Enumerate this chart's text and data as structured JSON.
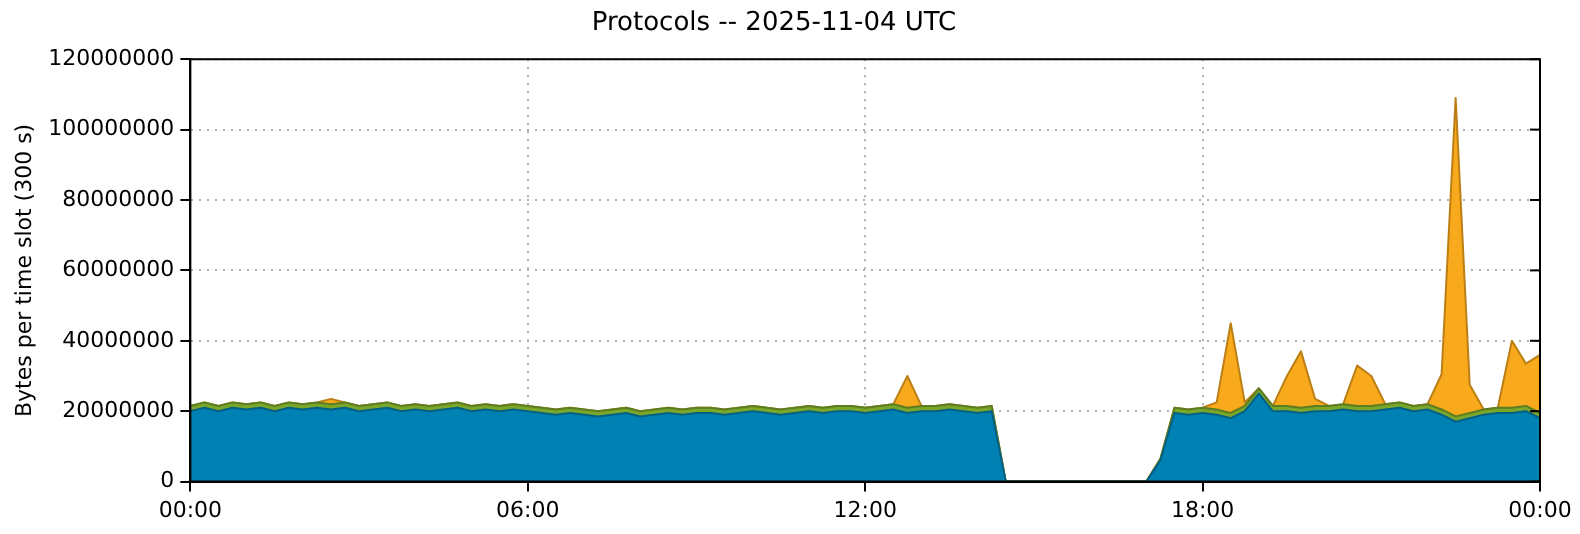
{
  "chart_data": {
    "type": "area",
    "stacked": true,
    "title": "Protocols -- 2025-11-04 UTC",
    "ylabel": "Bytes per time slot (300 s)",
    "x": [
      0,
      0.25,
      0.5,
      0.75,
      1,
      1.25,
      1.5,
      1.75,
      2,
      2.25,
      2.5,
      2.75,
      3,
      3.25,
      3.5,
      3.75,
      4,
      4.25,
      4.5,
      4.75,
      5,
      5.25,
      5.5,
      5.75,
      6,
      6.25,
      6.5,
      6.75,
      7,
      7.25,
      7.5,
      7.75,
      8,
      8.25,
      8.5,
      8.75,
      9,
      9.25,
      9.5,
      9.75,
      10,
      10.25,
      10.5,
      10.75,
      11,
      11.25,
      11.5,
      11.75,
      12,
      12.25,
      12.5,
      12.75,
      13,
      13.25,
      13.5,
      13.75,
      14,
      14.25,
      14.5,
      14.75,
      15,
      15.25,
      15.5,
      15.75,
      16,
      16.25,
      16.5,
      16.75,
      17,
      17.25,
      17.5,
      17.75,
      18,
      18.25,
      18.5,
      18.75,
      19,
      19.25,
      19.5,
      19.75,
      20,
      20.25,
      20.5,
      20.75,
      21,
      21.25,
      21.5,
      21.75,
      22,
      22.25,
      22.5,
      22.75,
      23,
      23.25,
      23.5,
      23.75,
      24
    ],
    "series": [
      {
        "color": "#0081b4",
        "values": [
          20000000,
          21000000,
          20000000,
          21000000,
          20500000,
          21000000,
          20000000,
          21000000,
          20500000,
          21000000,
          20500000,
          21000000,
          20000000,
          20500000,
          21000000,
          20000000,
          20500000,
          20000000,
          20500000,
          21000000,
          20000000,
          20500000,
          20000000,
          20500000,
          20000000,
          19500000,
          19000000,
          19500000,
          19000000,
          18500000,
          19000000,
          19500000,
          18500000,
          19000000,
          19500000,
          19000000,
          19500000,
          19500000,
          19000000,
          19500000,
          20000000,
          19500000,
          19000000,
          19500000,
          20000000,
          19500000,
          20000000,
          20000000,
          19500000,
          20000000,
          20500000,
          19500000,
          20000000,
          20000000,
          20500000,
          20000000,
          19500000,
          20000000,
          0,
          0,
          0,
          0,
          0,
          0,
          0,
          0,
          0,
          0,
          0,
          6000000,
          19500000,
          19000000,
          19500000,
          19000000,
          18000000,
          20000000,
          25000000,
          20000000,
          20000000,
          19500000,
          20000000,
          20000000,
          20500000,
          20000000,
          20000000,
          20500000,
          21000000,
          20000000,
          20500000,
          19000000,
          17000000,
          18000000,
          19000000,
          19500000,
          19500000,
          20000000,
          18000000
        ]
      },
      {
        "color": "#7aa62a",
        "values": [
          1500000,
          1500000,
          1500000,
          1500000,
          1500000,
          1500000,
          1500000,
          1500000,
          1500000,
          1500000,
          1500000,
          1500000,
          1500000,
          1500000,
          1500000,
          1500000,
          1500000,
          1500000,
          1500000,
          1500000,
          1500000,
          1500000,
          1500000,
          1500000,
          1500000,
          1500000,
          1500000,
          1500000,
          1500000,
          1500000,
          1500000,
          1500000,
          1500000,
          1500000,
          1500000,
          1500000,
          1500000,
          1500000,
          1500000,
          1500000,
          1500000,
          1500000,
          1500000,
          1500000,
          1500000,
          1500000,
          1500000,
          1500000,
          1500000,
          1500000,
          1500000,
          1500000,
          1500000,
          1500000,
          1500000,
          1500000,
          1500000,
          1500000,
          0,
          0,
          0,
          0,
          0,
          0,
          0,
          0,
          0,
          0,
          0,
          500000,
          1500000,
          1500000,
          1500000,
          1500000,
          1500000,
          1500000,
          1500000,
          1500000,
          1500000,
          1500000,
          1500000,
          1500000,
          1500000,
          1500000,
          1500000,
          1500000,
          1500000,
          1500000,
          1500000,
          1500000,
          1500000,
          1500000,
          1500000,
          1500000,
          1500000,
          1500000,
          1500000
        ]
      },
      {
        "color": "#f9a91c",
        "values": [
          0,
          0,
          0,
          0,
          0,
          0,
          0,
          0,
          0,
          0,
          1500000,
          0,
          0,
          0,
          0,
          0,
          0,
          0,
          0,
          0,
          0,
          0,
          0,
          0,
          0,
          0,
          0,
          0,
          0,
          0,
          0,
          0,
          0,
          0,
          0,
          0,
          0,
          0,
          0,
          0,
          0,
          0,
          0,
          0,
          0,
          0,
          0,
          0,
          0,
          0,
          0,
          9000000,
          0,
          0,
          0,
          0,
          0,
          0,
          0,
          0,
          0,
          0,
          0,
          0,
          0,
          0,
          0,
          0,
          0,
          0,
          0,
          0,
          0,
          2000000,
          25500000,
          1000000,
          0,
          0,
          8500000,
          16000000,
          2000000,
          0,
          0,
          11500000,
          8500000,
          0,
          0,
          0,
          0,
          10000000,
          90500000,
          8000000,
          0,
          0,
          19000000,
          12000000,
          16500000
        ]
      }
    ],
    "xlim": [
      0,
      24
    ],
    "xticks": [
      {
        "value": 0,
        "label": "00:00"
      },
      {
        "value": 6,
        "label": "06:00"
      },
      {
        "value": 12,
        "label": "12:00"
      },
      {
        "value": 18,
        "label": "18:00"
      },
      {
        "value": 24,
        "label": "00:00"
      }
    ],
    "ylim": [
      0,
      120000000
    ],
    "yticks": [
      0,
      20000000,
      40000000,
      60000000,
      80000000,
      100000000,
      120000000
    ],
    "grid": true,
    "legend": false
  }
}
